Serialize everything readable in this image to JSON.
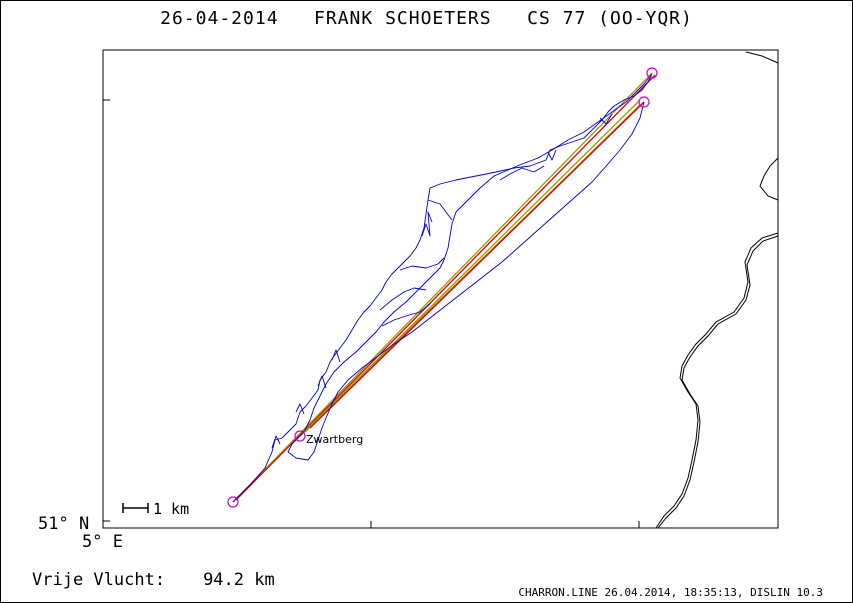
{
  "title": {
    "date": "26-04-2014",
    "pilot": "FRANK SCHOETERS",
    "glider": "CS 77 (OO-YQR)"
  },
  "map": {
    "lat_label": "51° N",
    "lon_label": "5° E",
    "scale_label": "1 km",
    "place_label": "Zwartberg",
    "colors": {
      "track": "#0000cc",
      "task_line_red": "#dd0000",
      "task_line_olive": "#9a9a00",
      "turnpoint": "#cc00cc",
      "border": "#000000"
    }
  },
  "distance": {
    "label": "Vrije Vlucht:",
    "value": "94.2 km"
  },
  "footer": "CHARRON.LINE 26.04.2014, 18:35:13, DISLIN 10.3"
}
